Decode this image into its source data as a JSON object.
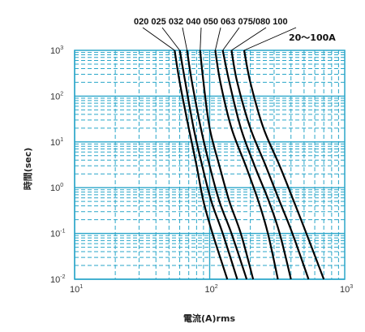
{
  "chart_data": {
    "type": "line",
    "xlabel": "電流(A)rms",
    "ylabel": "時間(sec)",
    "x_scale": "log",
    "y_scale": "log",
    "xlim": [
      10,
      1000
    ],
    "ylim": [
      0.01,
      1000
    ],
    "grid": true,
    "x_ticks": [
      {
        "base": "10",
        "exp": "1"
      },
      {
        "base": "10",
        "exp": "2"
      },
      {
        "base": "10",
        "exp": "3"
      }
    ],
    "y_ticks": [
      {
        "base": "10",
        "exp": "-2"
      },
      {
        "base": "10",
        "exp": "-1"
      },
      {
        "base": "10",
        "exp": "0"
      },
      {
        "base": "10",
        "exp": "1"
      },
      {
        "base": "10",
        "exp": "2"
      },
      {
        "base": "10",
        "exp": "3"
      }
    ],
    "range_label": "20～100A",
    "series_labels_text": [
      "020",
      "025",
      "032",
      "040",
      "050",
      "063",
      "075/080",
      "100"
    ],
    "colors": {
      "grid": "#2aa6c9",
      "curve": "#000000",
      "text": "#111111"
    },
    "series": [
      {
        "name": "020",
        "points": [
          [
            55,
            1000
          ],
          [
            60,
            200
          ],
          [
            70,
            20
          ],
          [
            80,
            3
          ],
          [
            90,
            0.5
          ],
          [
            105,
            0.1
          ],
          [
            135,
            0.01
          ]
        ]
      },
      {
        "name": "025",
        "points": [
          [
            60,
            1000
          ],
          [
            66,
            200
          ],
          [
            76,
            20
          ],
          [
            88,
            3
          ],
          [
            103,
            0.5
          ],
          [
            125,
            0.1
          ],
          [
            160,
            0.01
          ]
        ]
      },
      {
        "name": "032",
        "points": [
          [
            68,
            1000
          ],
          [
            74,
            200
          ],
          [
            86,
            20
          ],
          [
            100,
            3
          ],
          [
            118,
            0.5
          ],
          [
            145,
            0.1
          ],
          [
            188,
            0.01
          ]
        ]
      },
      {
        "name": "040",
        "points": [
          [
            85,
            1000
          ],
          [
            90,
            200
          ],
          [
            100,
            20
          ],
          [
            118,
            3
          ],
          [
            140,
            0.5
          ],
          [
            170,
            0.1
          ],
          [
            210,
            0.01
          ]
        ]
      },
      {
        "name": "050",
        "points": [
          [
            110,
            1000
          ],
          [
            120,
            200
          ],
          [
            145,
            20
          ],
          [
            185,
            3
          ],
          [
            230,
            0.5
          ],
          [
            270,
            0.1
          ],
          [
            320,
            0.01
          ]
        ]
      },
      {
        "name": "063",
        "points": [
          [
            125,
            1000
          ],
          [
            140,
            200
          ],
          [
            170,
            20
          ],
          [
            215,
            3
          ],
          [
            275,
            0.5
          ],
          [
            330,
            0.1
          ],
          [
            400,
            0.01
          ]
        ]
      },
      {
        "name": "075/080",
        "points": [
          [
            145,
            1000
          ],
          [
            160,
            200
          ],
          [
            200,
            20
          ],
          [
            260,
            3
          ],
          [
            330,
            0.5
          ],
          [
            410,
            0.1
          ],
          [
            540,
            0.01
          ]
        ]
      },
      {
        "name": "100",
        "points": [
          [
            180,
            1000
          ],
          [
            200,
            200
          ],
          [
            250,
            20
          ],
          [
            330,
            3
          ],
          [
            420,
            0.5
          ],
          [
            520,
            0.1
          ],
          [
            700,
            0.01
          ]
        ]
      }
    ]
  }
}
